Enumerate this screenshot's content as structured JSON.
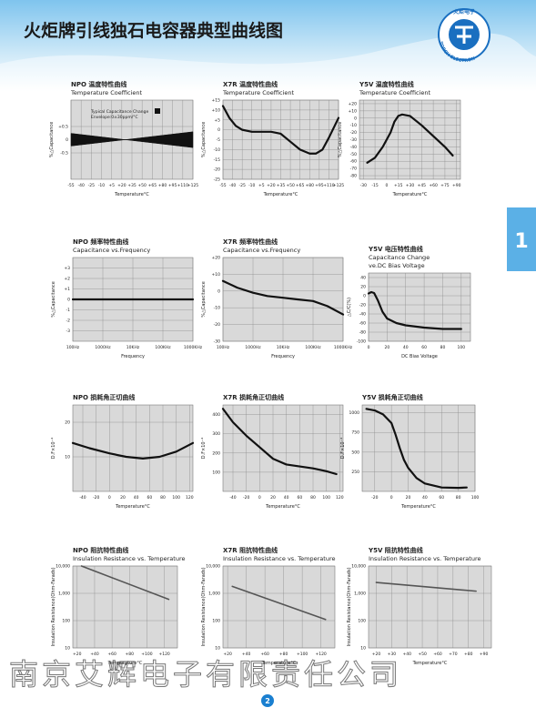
{
  "header": {
    "title": "火炬牌引线独石电容器典型曲线图",
    "logo_text": "TORCH ELECTRON",
    "logo_cn": "火炬电子"
  },
  "side_tab": "1",
  "footer": {
    "company": "南京艾辉电子有限责任公司",
    "page": "2"
  },
  "chart_data": [
    {
      "type": "envelope",
      "title": "NPO  温度特性曲线",
      "subtitle": "Temperature Coefficient",
      "annotation": [
        "Typical Capacitance Change",
        "Envelope:0±30ppm/°C"
      ],
      "xlabel": "Temperature°C",
      "ylabel": "%△Capacitance",
      "grid": true,
      "xlim": [
        -55,
        125
      ],
      "ylim": [
        -1.5,
        1.5
      ],
      "xticks": [
        -55,
        -40,
        -25,
        -10,
        {
          "value": 5,
          "label": "+5"
        },
        {
          "value": 20,
          "label": "+20"
        },
        {
          "value": 35,
          "label": "+35"
        },
        {
          "value": 50,
          "label": "+50"
        },
        {
          "value": 65,
          "label": "+65"
        },
        {
          "value": 80,
          "label": "+80"
        },
        {
          "value": 95,
          "label": "+95"
        },
        {
          "value": 110,
          "label": "+110"
        },
        {
          "value": 125,
          "label": "+125"
        }
      ],
      "yticks": [
        {
          "value": 0.5,
          "label": "+0.5"
        },
        0,
        -0.5
      ],
      "series": [
        {
          "color": "#111111",
          "x": [
            -55,
            25,
            125
          ],
          "values": [
            0.24,
            0,
            0.3
          ]
        },
        {
          "color": "#111111",
          "x": [
            -55,
            25,
            125
          ],
          "values": [
            -0.24,
            0,
            -0.3
          ]
        }
      ]
    },
    {
      "type": "line",
      "title": "X7R  温度特性曲线",
      "subtitle": "Temperature Coefficient",
      "xlabel": "Temperature°C",
      "ylabel": "%△Capacitance",
      "grid": true,
      "xlim": [
        -55,
        125
      ],
      "ylim": [
        -25,
        15
      ],
      "xticks": [
        -55,
        -40,
        -25,
        -10,
        {
          "value": 5,
          "label": "+5"
        },
        {
          "value": 20,
          "label": "+20"
        },
        {
          "value": 35,
          "label": "+35"
        },
        {
          "value": 50,
          "label": "+50"
        },
        {
          "value": 65,
          "label": "+65"
        },
        {
          "value": 80,
          "label": "+80"
        },
        {
          "value": 95,
          "label": "+95"
        },
        {
          "value": 110,
          "label": "+110"
        },
        {
          "value": 125,
          "label": "+125"
        }
      ],
      "yticks": [
        {
          "value": 15,
          "label": "+15"
        },
        {
          "value": 10,
          "label": "+10"
        },
        {
          "value": 5,
          "label": "+5"
        },
        0,
        -5,
        -10,
        -15,
        -20,
        -25
      ],
      "series": [
        {
          "color": "#111111",
          "x": [
            -55,
            -45,
            -35,
            -25,
            -10,
            5,
            20,
            35,
            50,
            65,
            80,
            90,
            100,
            110,
            125
          ],
          "values": [
            12,
            6,
            2,
            0,
            -1,
            -1,
            -1,
            -2,
            -6,
            -10,
            -12,
            -12,
            -10,
            -4,
            6
          ]
        }
      ]
    },
    {
      "type": "line",
      "title": "Y5V  温度特性曲线",
      "subtitle": "Temperature Coefficient",
      "xlabel": "Temperature°C",
      "ylabel": "%△Capacitance",
      "grid": true,
      "xlim": [
        -35,
        95
      ],
      "ylim": [
        -85,
        25
      ],
      "xticks": [
        -30,
        -15,
        0,
        {
          "value": 15,
          "label": "+15"
        },
        {
          "value": 30,
          "label": "+30"
        },
        {
          "value": 45,
          "label": "+45"
        },
        {
          "value": 60,
          "label": "+60"
        },
        {
          "value": 75,
          "label": "+75"
        },
        {
          "value": 90,
          "label": "+90"
        }
      ],
      "yticks": [
        {
          "value": 20,
          "label": "+20"
        },
        {
          "value": 10,
          "label": "+10"
        },
        0,
        -10,
        -20,
        -30,
        -40,
        -50,
        -60,
        -70,
        -80
      ],
      "series": [
        {
          "color": "#111111",
          "x": [
            -25,
            -15,
            -5,
            5,
            10,
            15,
            20,
            30,
            45,
            60,
            75,
            85
          ],
          "values": [
            -62,
            -55,
            -40,
            -20,
            -5,
            3,
            5,
            3,
            -10,
            -25,
            -40,
            -52
          ]
        }
      ]
    },
    {
      "type": "line",
      "title": "NPO   频率特性曲线",
      "subtitle": "Capacitance vs.Frequency",
      "xlabel": "Frequency",
      "ylabel": "%△Capacitance",
      "grid": true,
      "xlog": true,
      "xlim": [
        100,
        1000000
      ],
      "ylim": [
        -4,
        4
      ],
      "xticks": [
        {
          "value": 100,
          "label": "100Hz"
        },
        {
          "value": 1000,
          "label": "1000Hz"
        },
        {
          "value": 10000,
          "label": "10KHz"
        },
        {
          "value": 100000,
          "label": "100KHz"
        },
        {
          "value": 1000000,
          "label": "1000KHz"
        }
      ],
      "yticks": [
        {
          "value": 3,
          "label": "+3"
        },
        {
          "value": 2,
          "label": "+2"
        },
        {
          "value": 1,
          "label": "+1"
        },
        0,
        -1,
        -2,
        -3
      ],
      "series": [
        {
          "color": "#111111",
          "x": [
            100,
            1000000
          ],
          "values": [
            0,
            0
          ]
        }
      ]
    },
    {
      "type": "line",
      "title": "X7R   频率特性曲线",
      "subtitle": "Capacitance vs.Frequency",
      "xlabel": "Frequency",
      "ylabel": "%△Capacitance",
      "grid": true,
      "xlog": true,
      "xlim": [
        100,
        1000000
      ],
      "ylim": [
        -30,
        20
      ],
      "xticks": [
        {
          "value": 100,
          "label": "100Hz"
        },
        {
          "value": 1000,
          "label": "1000Hz"
        },
        {
          "value": 10000,
          "label": "10KHz"
        },
        {
          "value": 100000,
          "label": "100KHz"
        },
        {
          "value": 1000000,
          "label": "1000KHz"
        }
      ],
      "yticks": [
        {
          "value": 20,
          "label": "+20"
        },
        {
          "value": 10,
          "label": "+10"
        },
        0,
        -10,
        -20,
        -30
      ],
      "series": [
        {
          "color": "#111111",
          "x": [
            100,
            300,
            1000,
            3000,
            10000,
            30000,
            100000,
            300000,
            1000000
          ],
          "values": [
            6,
            2,
            -1,
            -3,
            -4,
            -5,
            -6,
            -9,
            -14
          ]
        }
      ]
    },
    {
      "type": "line",
      "title": "Y5V   电压特性曲线",
      "subtitle": "Capacitance Change",
      "subtitle_2": "ve.DC Bias Voltage",
      "xlabel": "DC Bias Voltage",
      "ylabel": "△C/C(%)",
      "grid": true,
      "xlim": [
        0,
        110
      ],
      "ylim": [
        -100,
        50
      ],
      "xticks": [
        0,
        20,
        40,
        60,
        80,
        100
      ],
      "yticks": [
        40,
        20,
        0,
        -20,
        -40,
        -60,
        -80,
        -100
      ],
      "series": [
        {
          "color": "#111111",
          "x": [
            0,
            3,
            6,
            10,
            15,
            20,
            30,
            40,
            60,
            80,
            100
          ],
          "values": [
            5,
            8,
            6,
            -10,
            -35,
            -50,
            -60,
            -65,
            -70,
            -73,
            -73
          ]
        }
      ]
    },
    {
      "type": "line",
      "title": "NPO   损耗角正切曲线",
      "xlabel": "Temperature°C",
      "ylabel": "D.F×10⁻⁴",
      "grid": true,
      "xlim": [
        -55,
        125
      ],
      "ylim": [
        0,
        25
      ],
      "xticks": [
        -40,
        -20,
        0,
        20,
        40,
        60,
        80,
        100,
        120
      ],
      "yticks": [
        20,
        10
      ],
      "series": [
        {
          "color": "#111111",
          "x": [
            -55,
            -30,
            0,
            25,
            50,
            75,
            100,
            125
          ],
          "values": [
            14,
            12.5,
            11,
            10,
            9.5,
            10,
            11.5,
            14
          ]
        }
      ]
    },
    {
      "type": "line",
      "title": "X7R   损耗角正切曲线",
      "xlabel": "Temperature°C",
      "ylabel": "D.F×10⁻⁴",
      "grid": true,
      "xlim": [
        -55,
        125
      ],
      "ylim": [
        0,
        450
      ],
      "xticks": [
        -40,
        -20,
        0,
        20,
        40,
        60,
        80,
        100,
        120
      ],
      "yticks": [
        400,
        300,
        200,
        100
      ],
      "series": [
        {
          "color": "#111111",
          "x": [
            -55,
            -40,
            -20,
            0,
            20,
            40,
            60,
            80,
            100,
            115
          ],
          "values": [
            430,
            360,
            290,
            230,
            170,
            140,
            130,
            120,
            105,
            90
          ]
        }
      ]
    },
    {
      "type": "line",
      "title": "Y5V   损耗角正切曲线",
      "xlabel": "Temperature°C",
      "ylabel": "D.F×10⁻⁴",
      "grid": true,
      "xlim": [
        -35,
        100
      ],
      "ylim": [
        0,
        1100
      ],
      "xticks": [
        -20,
        0,
        20,
        40,
        60,
        80,
        100
      ],
      "yticks": [
        1000,
        750,
        500,
        250
      ],
      "series": [
        {
          "color": "#111111",
          "x": [
            -30,
            -20,
            -10,
            0,
            5,
            10,
            15,
            20,
            30,
            40,
            60,
            80,
            90
          ],
          "values": [
            1050,
            1030,
            980,
            870,
            720,
            550,
            400,
            300,
            170,
            100,
            50,
            45,
            50
          ]
        }
      ]
    },
    {
      "type": "line",
      "title": "NPO  阻抗特性曲线",
      "subtitle": "Insulation Resistance vs. Temperature",
      "xlabel": "Temperature°C",
      "ylabel": "Insulation Resistance(Ohm-Farads)",
      "grid": true,
      "ylog": true,
      "xlim": [
        15,
        135
      ],
      "ylim": [
        10,
        10000
      ],
      "xticks": [
        {
          "value": 20,
          "label": "+20"
        },
        {
          "value": 40,
          "label": "+40"
        },
        {
          "value": 60,
          "label": "+60"
        },
        {
          "value": 80,
          "label": "+80"
        },
        {
          "value": 100,
          "label": "+100"
        },
        {
          "value": 120,
          "label": "+120"
        }
      ],
      "yticks": [
        {
          "value": 10000,
          "label": "10,000"
        },
        {
          "value": 1000,
          "label": "1,000"
        },
        100,
        10
      ],
      "series": [
        {
          "color": "#555555",
          "x": [
            25,
            125
          ],
          "values": [
            10000,
            600
          ]
        }
      ]
    },
    {
      "type": "line",
      "title": "X7R  阻抗特性曲线",
      "subtitle": "Insulation Resistance vs. Temperature",
      "xlabel": "Temperature°C",
      "ylabel": "Insulation Resistance(Ohm-Farads)",
      "grid": true,
      "ylog": true,
      "xlim": [
        15,
        135
      ],
      "ylim": [
        10,
        10000
      ],
      "xticks": [
        {
          "value": 20,
          "label": "+20"
        },
        {
          "value": 40,
          "label": "+40"
        },
        {
          "value": 60,
          "label": "+60"
        },
        {
          "value": 80,
          "label": "+80"
        },
        {
          "value": 100,
          "label": "+100"
        },
        {
          "value": 120,
          "label": "+120"
        }
      ],
      "yticks": [
        {
          "value": 10000,
          "label": "10,000"
        },
        {
          "value": 1000,
          "label": "1,000"
        },
        100,
        10
      ],
      "series": [
        {
          "color": "#555555",
          "x": [
            25,
            125
          ],
          "values": [
            1800,
            110
          ]
        }
      ]
    },
    {
      "type": "line",
      "title": "Y5V  阻抗特性曲线",
      "subtitle": "Insulation Resistance vs. Temperature",
      "xlabel": "Temperature°C",
      "ylabel": "Insulation Resistance(Ohm-Farads)",
      "grid": true,
      "ylog": true,
      "xlim": [
        15,
        95
      ],
      "ylim": [
        10,
        10000
      ],
      "xticks": [
        {
          "value": 20,
          "label": "+20"
        },
        {
          "value": 30,
          "label": "+30"
        },
        {
          "value": 40,
          "label": "+40"
        },
        {
          "value": 50,
          "label": "+50"
        },
        {
          "value": 60,
          "label": "+60"
        },
        {
          "value": 70,
          "label": "+70"
        },
        {
          "value": 80,
          "label": "+80"
        },
        {
          "value": 90,
          "label": "+90"
        }
      ],
      "yticks": [
        {
          "value": 10000,
          "label": "10,000"
        },
        {
          "value": 1000,
          "label": "1,000"
        },
        100,
        10
      ],
      "series": [
        {
          "color": "#555555",
          "x": [
            20,
            85
          ],
          "values": [
            2500,
            1200
          ]
        }
      ]
    }
  ]
}
